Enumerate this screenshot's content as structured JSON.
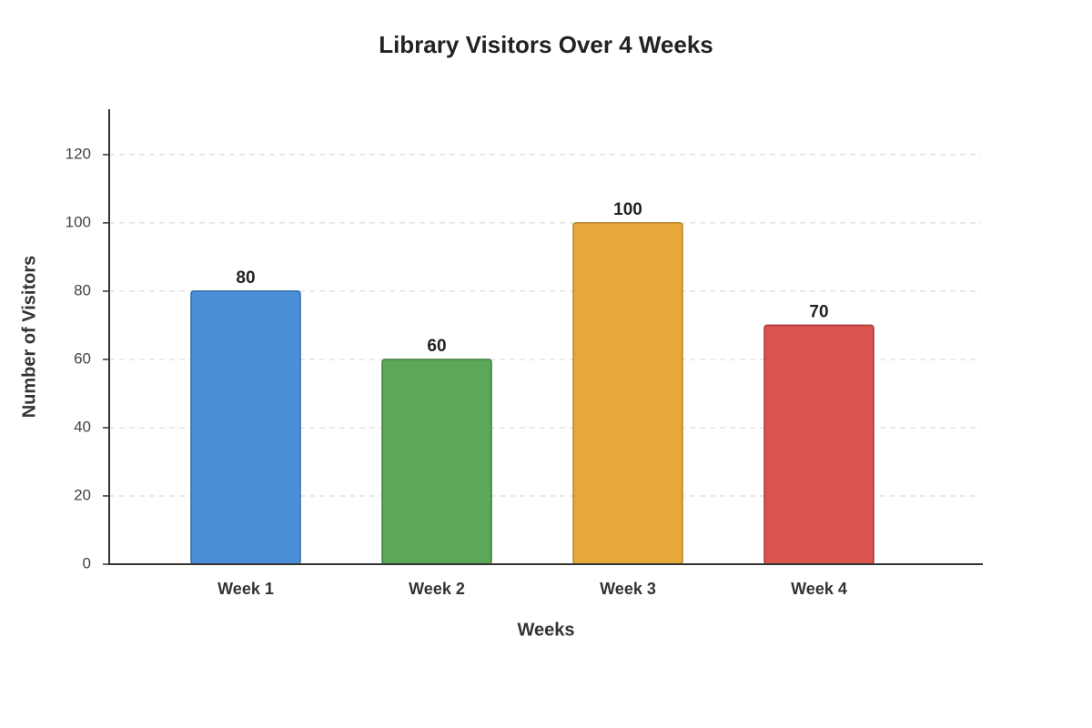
{
  "chart_data": {
    "type": "bar",
    "title": "Library Visitors Over 4 Weeks",
    "x_label": "Weeks",
    "y_label": "Number of Visitors",
    "categories": [
      "Week 1",
      "Week 2",
      "Week 3",
      "Week 4"
    ],
    "values": [
      80,
      60,
      100,
      70
    ],
    "colors": [
      "#4a90d9",
      "#5ca85a",
      "#e6a838",
      "#d9534f"
    ],
    "border_colors": [
      "#2f6ea8",
      "#3f7f3e",
      "#b8862a",
      "#a83a37"
    ],
    "ylim": [
      0,
      133.3
    ],
    "yticks": [
      0,
      20,
      40,
      60,
      80,
      100,
      120
    ],
    "grid": true
  }
}
